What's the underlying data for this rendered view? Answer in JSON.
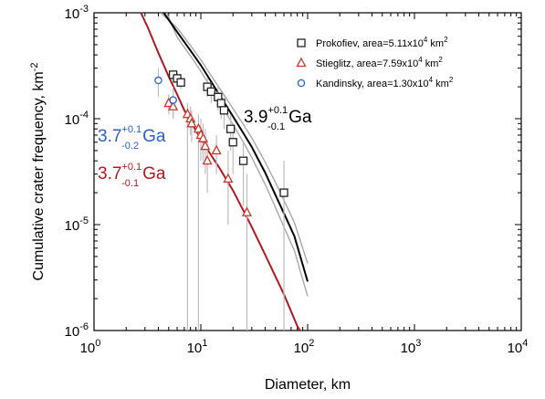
{
  "chart_data": {
    "type": "scatter",
    "xscale": "log",
    "yscale": "log",
    "xlim": [
      1,
      10000
    ],
    "ylim": [
      1e-06,
      0.001
    ],
    "grid": false,
    "legend_position": "top-right",
    "xlabel": "Diameter, km",
    "ylabel": "Cumulative crater frequency, km",
    "ylabel_sup": "-2",
    "x_ticks": [
      {
        "value": 1,
        "base": "10",
        "exp": "0"
      },
      {
        "value": 10,
        "base": "10",
        "exp": "1"
      },
      {
        "value": 100,
        "base": "10",
        "exp": "2"
      },
      {
        "value": 1000,
        "base": "10",
        "exp": "3"
      },
      {
        "value": 10000,
        "base": "10",
        "exp": "4"
      }
    ],
    "y_ticks": [
      {
        "value": 1e-06,
        "base": "10",
        "exp": "-6"
      },
      {
        "value": 1e-05,
        "base": "10",
        "exp": "-5"
      },
      {
        "value": 0.0001,
        "base": "10",
        "exp": "-4"
      },
      {
        "value": 0.001,
        "base": "10",
        "exp": "-3"
      }
    ],
    "series": [
      {
        "name": "Prokofiev",
        "legend_text": "Prokofiev, area=5.11x10",
        "legend_sup": "4",
        "legend_unit": " km",
        "legend_unit_sup": "2",
        "marker": "square",
        "color": "#222222",
        "points": [
          {
            "x": 5.5,
            "y": 0.00026,
            "ylo": 0.000235,
            "yhi": 0.00029
          },
          {
            "x": 6.0,
            "y": 0.00024,
            "ylo": 0.00021,
            "yhi": 0.00027
          },
          {
            "x": 6.5,
            "y": 0.00022,
            "ylo": 0.00019,
            "yhi": 0.00025
          },
          {
            "x": 11.5,
            "y": 0.0002,
            "ylo": 0.00016,
            "yhi": 0.00024
          },
          {
            "x": 12.5,
            "y": 0.00018,
            "ylo": 0.00014,
            "yhi": 0.00022
          },
          {
            "x": 14.5,
            "y": 0.00016,
            "ylo": 0.00012,
            "yhi": 0.0002
          },
          {
            "x": 15.5,
            "y": 0.00014,
            "ylo": 0.0001,
            "yhi": 0.00018
          },
          {
            "x": 16.5,
            "y": 0.00012,
            "ylo": 8e-05,
            "yhi": 0.00016
          },
          {
            "x": 19,
            "y": 8e-05,
            "ylo": 5e-05,
            "yhi": 0.00011
          },
          {
            "x": 20,
            "y": 6e-05,
            "ylo": 3e-05,
            "yhi": 9e-05
          },
          {
            "x": 25,
            "y": 4e-05,
            "ylo": 1.5e-05,
            "yhi": 6e-05
          },
          {
            "x": 60,
            "y": 2e-05,
            "ylo": 1e-06,
            "yhi": 4e-05
          }
        ]
      },
      {
        "name": "Stieglitz",
        "legend_text": "Stieglitz, area=7.59x10",
        "legend_sup": "4",
        "legend_unit": " km",
        "legend_unit_sup": "2",
        "marker": "triangle",
        "color": "#c8382e",
        "points": [
          {
            "x": 5.0,
            "y": 0.00014,
            "ylo": 0.00011,
            "yhi": 0.00017
          },
          {
            "x": 5.5,
            "y": 0.00013,
            "ylo": 0.0001,
            "yhi": 0.00016
          },
          {
            "x": 7.5,
            "y": 0.00011,
            "ylo": 1e-06,
            "yhi": 0.00014
          },
          {
            "x": 8.0,
            "y": 0.0001,
            "ylo": 7e-05,
            "yhi": 0.00013
          },
          {
            "x": 8.2,
            "y": 9e-05,
            "ylo": 6e-05,
            "yhi": 0.00012
          },
          {
            "x": 9.5,
            "y": 8e-05,
            "ylo": 1e-06,
            "yhi": 0.00011
          },
          {
            "x": 10,
            "y": 7e-05,
            "ylo": 4e-05,
            "yhi": 0.0001
          },
          {
            "x": 10.5,
            "y": 6.5e-05,
            "ylo": 4e-05,
            "yhi": 9e-05
          },
          {
            "x": 11,
            "y": 5.5e-05,
            "ylo": 3e-05,
            "yhi": 8e-05
          },
          {
            "x": 11.5,
            "y": 4e-05,
            "ylo": 2e-05,
            "yhi": 6e-05
          },
          {
            "x": 14,
            "y": 5e-05,
            "ylo": 3e-05,
            "yhi": 7e-05
          },
          {
            "x": 18,
            "y": 2.7e-05,
            "ylo": 1e-05,
            "yhi": 5e-05
          },
          {
            "x": 27,
            "y": 1.3e-05,
            "ylo": 1e-06,
            "yhi": 3e-05
          }
        ]
      },
      {
        "name": "Kandinsky",
        "legend_text": "Kandinsky, area=1.30x10",
        "legend_sup": "4",
        "legend_unit": " km",
        "legend_unit_sup": "2",
        "marker": "circle",
        "color": "#2a5fd0",
        "points": [
          {
            "x": 4.0,
            "y": 0.00023,
            "ylo": 0.00016,
            "yhi": 0.0003
          },
          {
            "x": 5.5,
            "y": 0.00015,
            "ylo": 0.0001,
            "yhi": 0.0002
          }
        ]
      }
    ],
    "fits": [
      {
        "color": "#000000",
        "bounds_color": "#a8a8a8",
        "points": [
          [
            4.5,
            0.001
          ],
          [
            6,
            0.00066
          ],
          [
            8,
            0.00044
          ],
          [
            10,
            0.00032
          ],
          [
            13,
            0.00021
          ],
          [
            16,
            0.00015
          ],
          [
            20,
            0.000105
          ],
          [
            25,
            7.3e-05
          ],
          [
            30,
            5.4e-05
          ],
          [
            40,
            3.1e-05
          ],
          [
            50,
            1.9e-05
          ],
          [
            60,
            1.28e-05
          ],
          [
            75,
            7.8e-06
          ],
          [
            100,
            2.9e-06
          ]
        ],
        "upper": [
          [
            4.2,
            0.001
          ],
          [
            6,
            0.00072
          ],
          [
            8,
            0.00049
          ],
          [
            10,
            0.00036
          ],
          [
            13,
            0.00024
          ],
          [
            16,
            0.000175
          ],
          [
            20,
            0.000125
          ],
          [
            25,
            8.8e-05
          ],
          [
            30,
            6.6e-05
          ],
          [
            40,
            3.9e-05
          ],
          [
            50,
            2.5e-05
          ],
          [
            60,
            1.7e-05
          ],
          [
            75,
            1.05e-05
          ],
          [
            100,
            4.3e-06
          ]
        ],
        "lower": [
          [
            4.8,
            0.001
          ],
          [
            6,
            0.00059
          ],
          [
            8,
            0.00039
          ],
          [
            10,
            0.00028
          ],
          [
            13,
            0.000182
          ],
          [
            16,
            0.000128
          ],
          [
            20,
            8.8e-05
          ],
          [
            25,
            6e-05
          ],
          [
            30,
            4.3e-05
          ],
          [
            40,
            2.4e-05
          ],
          [
            50,
            1.45e-05
          ],
          [
            60,
            9.5e-06
          ],
          [
            75,
            5.7e-06
          ],
          [
            100,
            2.1e-06
          ]
        ],
        "label": "3.9",
        "label_sup": "+0.1",
        "label_sub": "-0.1",
        "label_unit": "Ga",
        "label_color": "#000000"
      },
      {
        "color": "#b3191f",
        "points": [
          [
            2.75,
            0.001
          ],
          [
            3.2,
            0.00072
          ],
          [
            4,
            0.00042
          ],
          [
            5,
            0.00025
          ],
          [
            6,
            0.00017
          ],
          [
            7,
            0.00012
          ],
          [
            8,
            9.5e-05
          ],
          [
            10,
            6.4e-05
          ],
          [
            12,
            4.8e-05
          ],
          [
            15,
            3.4e-05
          ],
          [
            20,
            2.1e-05
          ],
          [
            30,
            9.5e-06
          ],
          [
            40,
            5.2e-06
          ],
          [
            60,
            2.2e-06
          ],
          [
            80,
            1.1e-06
          ],
          [
            90,
            9e-07
          ]
        ],
        "label": "3.7",
        "label_sup": "+0.1",
        "label_sub": "-0.1",
        "label_unit": "Ga",
        "label_color": "#b3191f"
      }
    ],
    "extra_labels": [
      {
        "label": "3.7",
        "label_sup": "+0.1",
        "label_sub": "-0.2",
        "label_unit": "Ga",
        "label_color": "#2a5fd0"
      }
    ]
  }
}
